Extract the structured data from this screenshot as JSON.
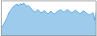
{
  "chart_data": {
    "type": "area",
    "values": [
      2.0,
      2.8,
      3.5,
      4.5,
      5.5,
      6.8,
      7.5,
      8.2,
      8.8,
      9.2,
      9.5,
      9.0,
      9.6,
      9.3,
      9.7,
      9.4,
      8.8,
      9.1,
      8.6,
      8.0,
      7.5,
      7.0,
      7.4,
      7.8,
      7.2,
      6.8,
      7.1,
      7.5,
      7.0,
      6.6,
      6.9,
      7.3,
      6.8,
      6.5,
      6.8,
      7.2,
      7.5,
      7.8,
      7.4,
      7.0,
      7.4,
      7.8,
      7.5,
      7.1,
      6.8,
      7.2,
      7.6,
      7.3,
      6.9,
      6.6,
      7.0,
      7.4,
      7.1,
      6.7,
      6.4,
      6.2,
      6.5,
      6.9,
      4.5,
      7.2
    ],
    "color": "#5ba8e0",
    "ylim": [
      0,
      10.476
    ],
    "tick_labels": false
  }
}
